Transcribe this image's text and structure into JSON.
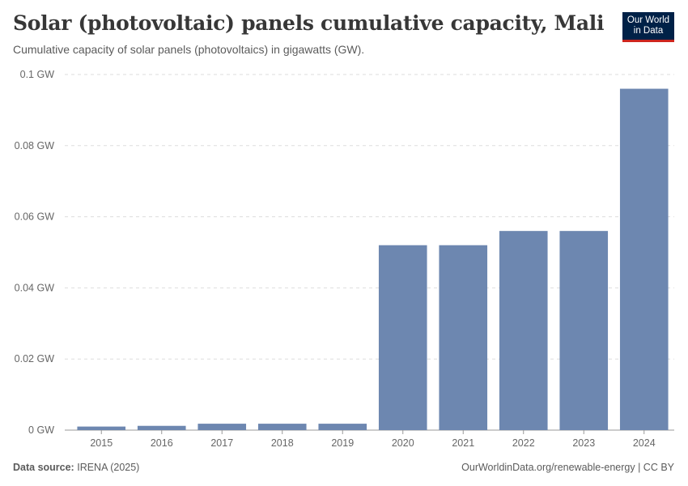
{
  "header": {
    "title": "Solar (photovoltaic) panels cumulative capacity, Mali",
    "subtitle": "Cumulative capacity of solar panels (photovoltaics) in gigawatts (GW)."
  },
  "logo": {
    "line1": "Our World",
    "line2": "in Data",
    "bg_color": "#002147",
    "accent_color": "#ce261e"
  },
  "footer": {
    "source_label": "Data source:",
    "source_value": "IRENA (2025)",
    "attribution": "OurWorldinData.org/renewable-energy | CC BY"
  },
  "chart_data": {
    "type": "bar",
    "title": "Solar (photovoltaic) panels cumulative capacity, Mali",
    "xlabel": "",
    "ylabel": "",
    "categories": [
      "2015",
      "2016",
      "2017",
      "2018",
      "2019",
      "2020",
      "2021",
      "2022",
      "2023",
      "2024"
    ],
    "values": [
      0.001,
      0.0012,
      0.0018,
      0.0018,
      0.0018,
      0.052,
      0.052,
      0.056,
      0.056,
      0.096
    ],
    "ylim": [
      0,
      0.1
    ],
    "yticks": [
      0,
      0.02,
      0.04,
      0.06,
      0.08,
      0.1
    ],
    "ytick_labels": [
      "0 GW",
      "0.02 GW",
      "0.04 GW",
      "0.06 GW",
      "0.08 GW",
      "0.1 GW"
    ],
    "grid": true,
    "bar_color": "#6d87b0"
  }
}
